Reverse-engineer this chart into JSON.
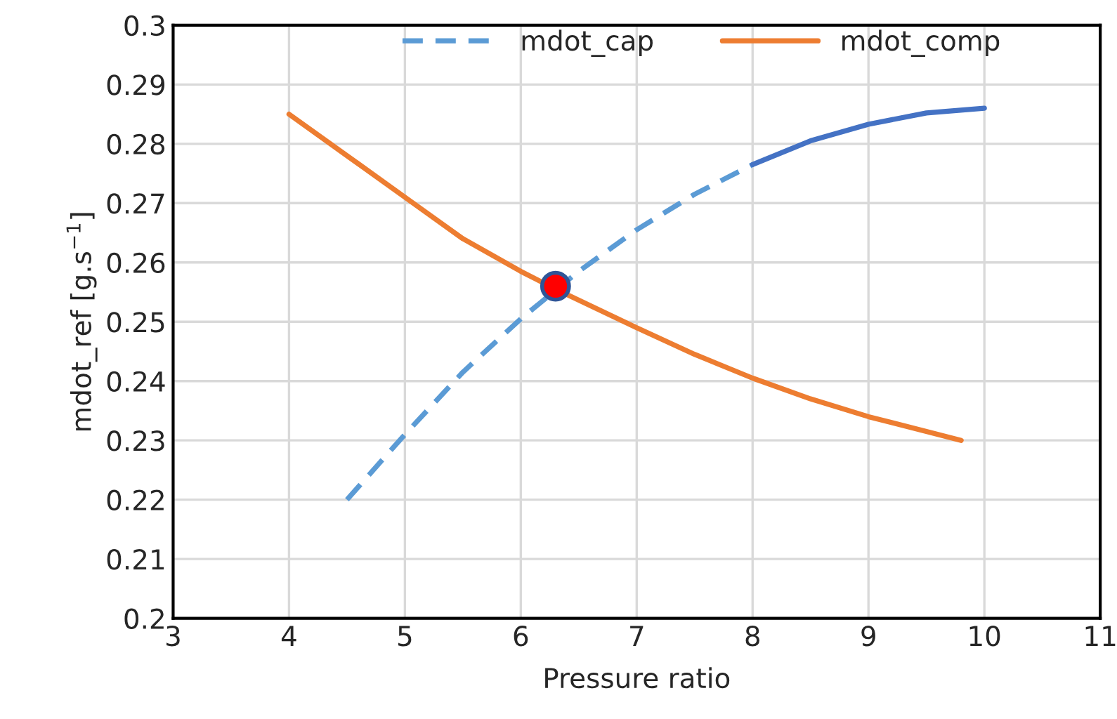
{
  "chart_data": {
    "type": "line",
    "xlabel": "Pressure ratio",
    "ylabel": "mdot_ref [g.s$^{−1}$]",
    "series": [
      {
        "name": "mdot_cap",
        "color": "#5b9bd5",
        "line_style": "dashed",
        "x": [
          4.5,
          5,
          5.5,
          6,
          6.5,
          7,
          7.5,
          8
        ],
        "values": [
          0.22,
          0.231,
          0.2415,
          0.2505,
          0.2585,
          0.2655,
          0.2715,
          0.2765
        ]
      },
      {
        "color": "#4472c4",
        "line_style": "solid",
        "x": [
          8,
          8.5,
          9,
          9.5,
          10
        ],
        "values": [
          0.2765,
          0.2805,
          0.2833,
          0.2852,
          0.286
        ]
      },
      {
        "name": "mdot_comp",
        "color": "#ed7d31",
        "line_style": "solid",
        "x": [
          4,
          4.5,
          5,
          5.5,
          6,
          6.3,
          7,
          7.5,
          8,
          8.5,
          9,
          9.5,
          9.8
        ],
        "values": [
          0.285,
          0.278,
          0.271,
          0.264,
          0.2585,
          0.2555,
          0.249,
          0.2445,
          0.2405,
          0.237,
          0.234,
          0.2315,
          0.23
        ]
      },
      {
        "type": "scatter",
        "color": "#ff0000",
        "marker": "circle",
        "x": [
          6.3
        ],
        "values": [
          0.256
        ]
      }
    ],
    "xlim": [
      3,
      11
    ],
    "xticks": [
      3,
      4,
      5,
      6,
      7,
      8,
      9,
      10,
      11
    ],
    "ylim": [
      0.2,
      0.3
    ],
    "yticks": [
      0.2,
      0.21,
      0.22,
      0.23,
      0.24,
      0.25,
      0.26,
      0.27,
      0.28,
      0.29,
      0.3
    ],
    "grid": true,
    "legend": "top",
    "marker": "none"
  }
}
